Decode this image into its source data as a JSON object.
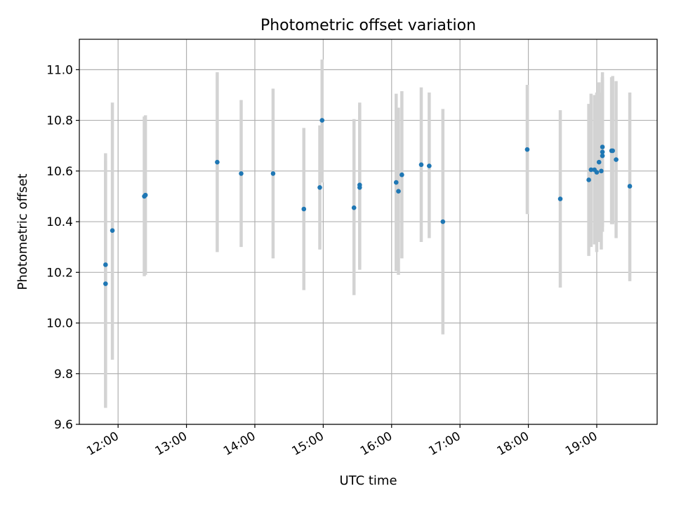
{
  "chart_data": {
    "type": "scatter",
    "title": "Photometric offset variation",
    "xlabel": "UTC time",
    "ylabel": "Photometric offset",
    "ylim": [
      9.6,
      11.12
    ],
    "xlim": [
      "11:26",
      "19:53"
    ],
    "grid": true,
    "x_ticks": [
      "12:00",
      "13:00",
      "14:00",
      "15:00",
      "16:00",
      "17:00",
      "18:00",
      "19:00"
    ],
    "y_ticks": [
      "9.6",
      "9.8",
      "10.0",
      "10.2",
      "10.4",
      "10.6",
      "10.8",
      "11.0"
    ],
    "colors": {
      "point": "#1f77b4",
      "errorbar": "#d3d3d3",
      "grid": "#b0b0b0"
    },
    "points": [
      {
        "x": "11:49",
        "y": 10.23,
        "ylow": 9.8,
        "yhigh": 10.67
      },
      {
        "x": "11:49",
        "y": 10.155,
        "ylow": 9.665,
        "yhigh": 10.64
      },
      {
        "x": "11:55",
        "y": 10.365,
        "ylow": 9.855,
        "yhigh": 10.87
      },
      {
        "x": "12:23",
        "y": 10.5,
        "ylow": 10.185,
        "yhigh": 10.815
      },
      {
        "x": "12:24",
        "y": 10.505,
        "ylow": 10.19,
        "yhigh": 10.82
      },
      {
        "x": "13:27",
        "y": 10.635,
        "ylow": 10.28,
        "yhigh": 10.99
      },
      {
        "x": "13:48",
        "y": 10.59,
        "ylow": 10.3,
        "yhigh": 10.88
      },
      {
        "x": "14:16",
        "y": 10.59,
        "ylow": 10.255,
        "yhigh": 10.925
      },
      {
        "x": "14:43",
        "y": 10.45,
        "ylow": 10.13,
        "yhigh": 10.77
      },
      {
        "x": "14:57",
        "y": 10.535,
        "ylow": 10.29,
        "yhigh": 10.78
      },
      {
        "x": "14:59",
        "y": 10.8,
        "ylow": 10.555,
        "yhigh": 11.04
      },
      {
        "x": "15:27",
        "y": 10.455,
        "ylow": 10.11,
        "yhigh": 10.805
      },
      {
        "x": "15:32",
        "y": 10.545,
        "ylow": 10.22,
        "yhigh": 10.87
      },
      {
        "x": "15:32",
        "y": 10.535,
        "ylow": 10.21,
        "yhigh": 10.86
      },
      {
        "x": "16:04",
        "y": 10.555,
        "ylow": 10.205,
        "yhigh": 10.905
      },
      {
        "x": "16:06",
        "y": 10.52,
        "ylow": 10.19,
        "yhigh": 10.85
      },
      {
        "x": "16:09",
        "y": 10.585,
        "ylow": 10.255,
        "yhigh": 10.915
      },
      {
        "x": "16:26",
        "y": 10.625,
        "ylow": 10.32,
        "yhigh": 10.93
      },
      {
        "x": "16:33",
        "y": 10.62,
        "ylow": 10.335,
        "yhigh": 10.91
      },
      {
        "x": "16:45",
        "y": 10.4,
        "ylow": 9.955,
        "yhigh": 10.845
      },
      {
        "x": "17:59",
        "y": 10.685,
        "ylow": 10.43,
        "yhigh": 10.94
      },
      {
        "x": "18:28",
        "y": 10.49,
        "ylow": 10.14,
        "yhigh": 10.84
      },
      {
        "x": "18:53",
        "y": 10.565,
        "ylow": 10.265,
        "yhigh": 10.865
      },
      {
        "x": "18:55",
        "y": 10.605,
        "ylow": 10.3,
        "yhigh": 10.905
      },
      {
        "x": "18:58",
        "y": 10.605,
        "ylow": 10.31,
        "yhigh": 10.9
      },
      {
        "x": "19:00",
        "y": 10.595,
        "ylow": 10.28,
        "yhigh": 10.91
      },
      {
        "x": "19:02",
        "y": 10.635,
        "ylow": 10.32,
        "yhigh": 10.95
      },
      {
        "x": "19:04",
        "y": 10.6,
        "ylow": 10.29,
        "yhigh": 10.91
      },
      {
        "x": "19:05",
        "y": 10.695,
        "ylow": 10.4,
        "yhigh": 10.99
      },
      {
        "x": "19:05",
        "y": 10.675,
        "ylow": 10.38,
        "yhigh": 10.97
      },
      {
        "x": "19:05",
        "y": 10.66,
        "ylow": 10.36,
        "yhigh": 10.96
      },
      {
        "x": "19:13",
        "y": 10.68,
        "ylow": 10.39,
        "yhigh": 10.97
      },
      {
        "x": "19:14",
        "y": 10.68,
        "ylow": 10.39,
        "yhigh": 10.975
      },
      {
        "x": "19:17",
        "y": 10.645,
        "ylow": 10.335,
        "yhigh": 10.955
      },
      {
        "x": "19:29",
        "y": 10.54,
        "ylow": 10.165,
        "yhigh": 10.91
      }
    ]
  }
}
